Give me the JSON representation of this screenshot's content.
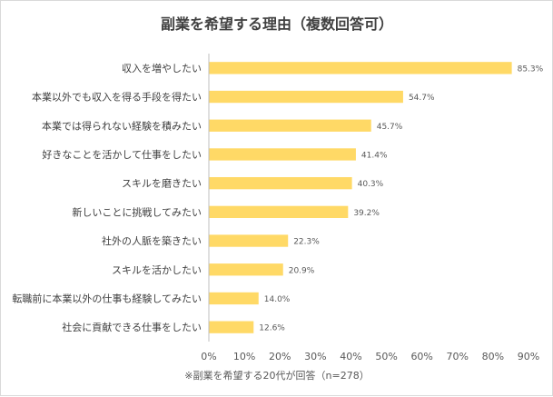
{
  "chart_data": {
    "type": "bar",
    "orientation": "horizontal",
    "title": "副業を希望する理由（複数回答可）",
    "categories": [
      "収入を増やしたい",
      "本業以外でも収入を得る手段を得たい",
      "本業では得られない経験を積みたい",
      "好きなことを活かして仕事をしたい",
      "スキルを磨きたい",
      "新しいことに挑戦してみたい",
      "社外の人脈を築きたい",
      "スキルを活かしたい",
      "転職前に本業以外の仕事も経験してみたい",
      "社会に貢献できる仕事をしたい"
    ],
    "values": [
      85.3,
      54.7,
      45.7,
      41.4,
      40.3,
      39.2,
      22.3,
      20.9,
      14.0,
      12.6
    ],
    "value_labels": [
      "85.3%",
      "54.7%",
      "45.7%",
      "41.4%",
      "40.3%",
      "39.2%",
      "22.3%",
      "20.9%",
      "14.0%",
      "12.6%"
    ],
    "x_ticks": [
      "0%",
      "10%",
      "20%",
      "30%",
      "40%",
      "50%",
      "60%",
      "70%",
      "80%",
      "90%"
    ],
    "xlim": [
      0,
      90
    ],
    "xlabel": "",
    "ylabel": "",
    "grid": false,
    "note": "※副業を希望する20代が回答（n=278）",
    "bar_color": "#ffd966",
    "axis_color": "#bfbfbf",
    "text_color": "#404040"
  }
}
